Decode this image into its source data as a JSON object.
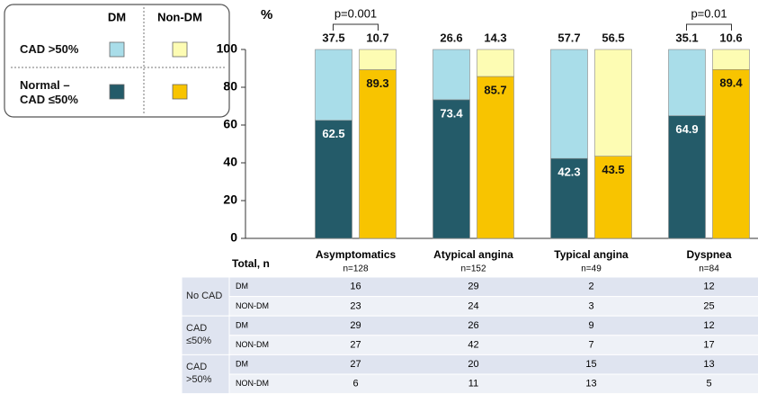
{
  "chart_data": {
    "type": "stacked-bar",
    "y_label": "%",
    "categories": [
      "Asymptomatics",
      "Atypical angina",
      "Typical angina",
      "Dyspnea"
    ],
    "annotations": [
      "p=0.001",
      null,
      null,
      "p=0.01"
    ],
    "ylim": [
      0,
      100
    ],
    "yticks": [
      0,
      20,
      40,
      60,
      80,
      100
    ],
    "stack_labels": [
      "Normal – CAD ≤50%",
      "CAD >50%"
    ],
    "groups": [
      {
        "name": "DM",
        "series": [
          {
            "color": "#245b69",
            "values": [
              62.5,
              73.4,
              42.3,
              64.9
            ]
          },
          {
            "color": "#a9dde9",
            "values": [
              37.5,
              26.6,
              57.7,
              35.1
            ]
          }
        ]
      },
      {
        "name": "Non-DM",
        "series": [
          {
            "color": "#f8c400",
            "values": [
              89.3,
              85.7,
              43.5,
              89.4
            ]
          },
          {
            "color": "#fdfcb3",
            "values": [
              10.7,
              14.3,
              56.5,
              10.6
            ]
          }
        ]
      }
    ]
  },
  "table": {
    "header": "Total, n",
    "totals": [
      "n=128",
      "n=152",
      "n=49",
      "n=84"
    ],
    "groups": [
      {
        "label": "No CAD",
        "rows": [
          {
            "label": "DM",
            "values": [
              16,
              29,
              2,
              12
            ]
          },
          {
            "label": "NON-DM",
            "values": [
              23,
              24,
              3,
              25
            ]
          }
        ]
      },
      {
        "label": "CAD ≤50%",
        "rows": [
          {
            "label": "DM",
            "values": [
              29,
              26,
              9,
              12
            ]
          },
          {
            "label": "NON-DM",
            "values": [
              27,
              42,
              7,
              17
            ]
          }
        ]
      },
      {
        "label": "CAD >50%",
        "rows": [
          {
            "label": "DM",
            "values": [
              27,
              20,
              15,
              13
            ]
          },
          {
            "label": "NON-DM",
            "values": [
              6,
              11,
              13,
              5
            ]
          }
        ]
      }
    ]
  }
}
